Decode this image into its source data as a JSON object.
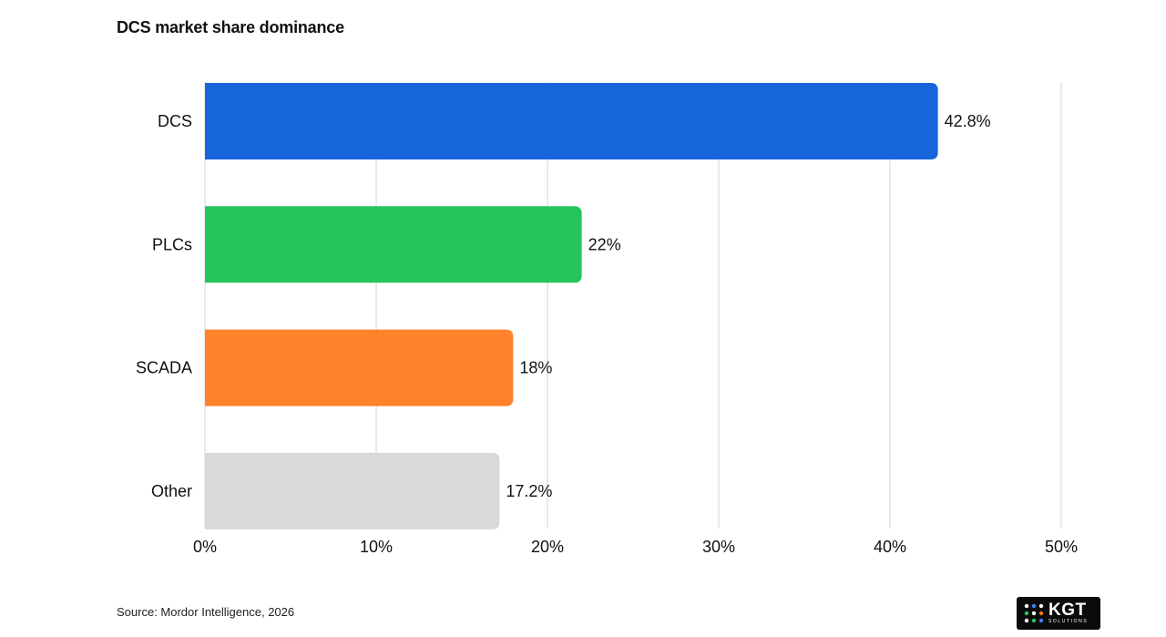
{
  "chart_data": {
    "type": "bar",
    "orientation": "horizontal",
    "title": "DCS market share dominance",
    "categories": [
      "DCS",
      "PLCs",
      "SCADA",
      "Other"
    ],
    "values": [
      42.8,
      22,
      18,
      17.2
    ],
    "value_labels": [
      "42.8%",
      "22%",
      "18%",
      "17.2%"
    ],
    "colors": [
      "#1765db",
      "#25c55e",
      "#fe832b",
      "#d9d9d9"
    ],
    "xlim": [
      0,
      50
    ],
    "xticks": [
      0,
      10,
      20,
      30,
      40,
      50
    ],
    "xtick_labels": [
      "0%",
      "10%",
      "20%",
      "30%",
      "40%",
      "50%"
    ],
    "xlabel": "",
    "ylabel": "",
    "grid": "vertical"
  },
  "footer": {
    "source": "Source: Mordor Intelligence, 2026"
  },
  "logo": {
    "main": "KGT",
    "sub": "SOLUTIONS"
  }
}
